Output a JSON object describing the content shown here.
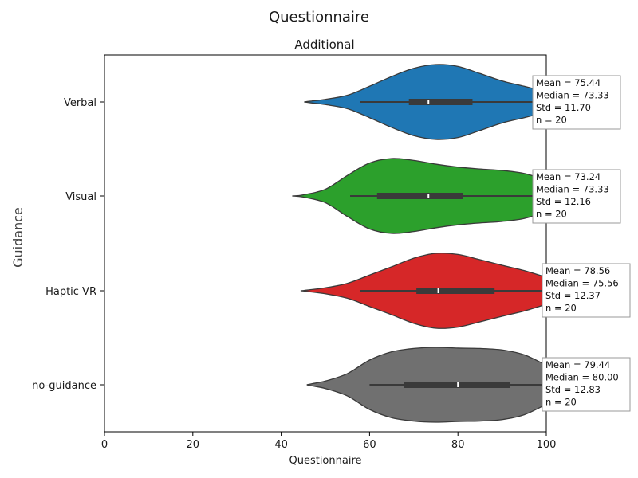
{
  "chart_data": {
    "type": "violin",
    "suptitle": "Questionnaire",
    "title": "Additional",
    "xlabel": "Questionnaire",
    "ylabel": "Guidance",
    "xlim": [
      0,
      100
    ],
    "xticks": [
      "0",
      "20",
      "40",
      "60",
      "80",
      "100"
    ],
    "grid": false,
    "series": [
      {
        "name": "Verbal",
        "color": "#1f77b4",
        "stats": [
          "Mean = 75.44",
          "Median = 73.33",
          "Std = 11.70",
          "n = 20"
        ],
        "median": 73.33,
        "q1": 68.9,
        "q3": 83.3,
        "whisker_low": 57.8,
        "whisker_high": 100,
        "density_profile": [
          [
            45.2,
            0.0
          ],
          [
            46.5,
            0.02
          ],
          [
            50,
            0.07
          ],
          [
            55,
            0.18
          ],
          [
            60,
            0.42
          ],
          [
            65,
            0.68
          ],
          [
            70,
            0.9
          ],
          [
            75,
            1.0
          ],
          [
            80,
            0.95
          ],
          [
            85,
            0.76
          ],
          [
            90,
            0.56
          ],
          [
            95,
            0.42
          ],
          [
            100,
            0.27
          ]
        ]
      },
      {
        "name": "Visual",
        "color": "#2ca02c",
        "stats": [
          "Mean = 73.24",
          "Median = 73.33",
          "Std = 12.16",
          "n = 20"
        ],
        "median": 73.33,
        "q1": 61.7,
        "q3": 81.1,
        "whisker_low": 55.6,
        "whisker_high": 100,
        "density_profile": [
          [
            42.5,
            0.0
          ],
          [
            45,
            0.03
          ],
          [
            50,
            0.18
          ],
          [
            55,
            0.55
          ],
          [
            60,
            0.88
          ],
          [
            65,
            1.0
          ],
          [
            70,
            0.95
          ],
          [
            75,
            0.85
          ],
          [
            80,
            0.77
          ],
          [
            85,
            0.72
          ],
          [
            90,
            0.68
          ],
          [
            95,
            0.6
          ],
          [
            100,
            0.42
          ]
        ]
      },
      {
        "name": "Haptic VR",
        "color": "#d62728",
        "stats": [
          "Mean = 78.56",
          "Median = 75.56",
          "Std = 12.37",
          "n = 20"
        ],
        "median": 75.56,
        "q1": 70.6,
        "q3": 88.3,
        "whisker_low": 57.8,
        "whisker_high": 100,
        "density_profile": [
          [
            44.4,
            0.0
          ],
          [
            46,
            0.02
          ],
          [
            50,
            0.08
          ],
          [
            55,
            0.2
          ],
          [
            60,
            0.42
          ],
          [
            65,
            0.64
          ],
          [
            70,
            0.87
          ],
          [
            75,
            1.0
          ],
          [
            80,
            0.97
          ],
          [
            85,
            0.83
          ],
          [
            90,
            0.68
          ],
          [
            95,
            0.54
          ],
          [
            100,
            0.36
          ]
        ]
      },
      {
        "name": "no-guidance",
        "color": "#707070",
        "stats": [
          "Mean = 79.44",
          "Median = 80.00",
          "Std = 12.83",
          "n = 20"
        ],
        "median": 80.0,
        "q1": 67.8,
        "q3": 91.7,
        "whisker_low": 60.0,
        "whisker_high": 100,
        "density_profile": [
          [
            45.8,
            0.0
          ],
          [
            47,
            0.03
          ],
          [
            50,
            0.1
          ],
          [
            55,
            0.3
          ],
          [
            60,
            0.66
          ],
          [
            65,
            0.88
          ],
          [
            70,
            0.97
          ],
          [
            75,
            1.0
          ],
          [
            80,
            0.98
          ],
          [
            85,
            0.97
          ],
          [
            90,
            0.93
          ],
          [
            95,
            0.8
          ],
          [
            100,
            0.52
          ]
        ]
      }
    ]
  }
}
